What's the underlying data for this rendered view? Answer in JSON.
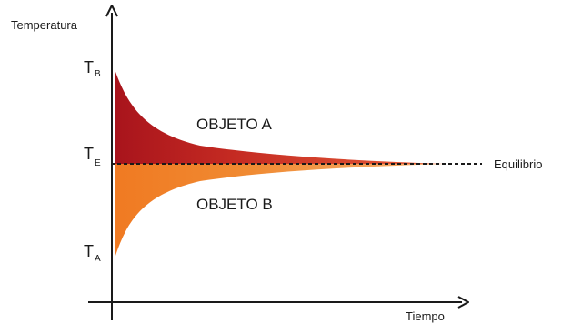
{
  "axes": {
    "y_title": "Temperatura",
    "x_title": "Tiempo"
  },
  "ticks": {
    "tb": {
      "main": "T",
      "sub": "B"
    },
    "te": {
      "main": "T",
      "sub": "E"
    },
    "ta": {
      "main": "T",
      "sub": "A"
    }
  },
  "regions": {
    "a_label": "OBJETO A",
    "b_label": "OBJETO B"
  },
  "equilibrium_label": "Equilibrio",
  "colors": {
    "object_a_dark": "#a8141c",
    "object_a_light": "#e14a2a",
    "object_b_dark": "#f07a22",
    "object_b_light": "#f6b070",
    "axis": "#1a1a1a"
  }
}
